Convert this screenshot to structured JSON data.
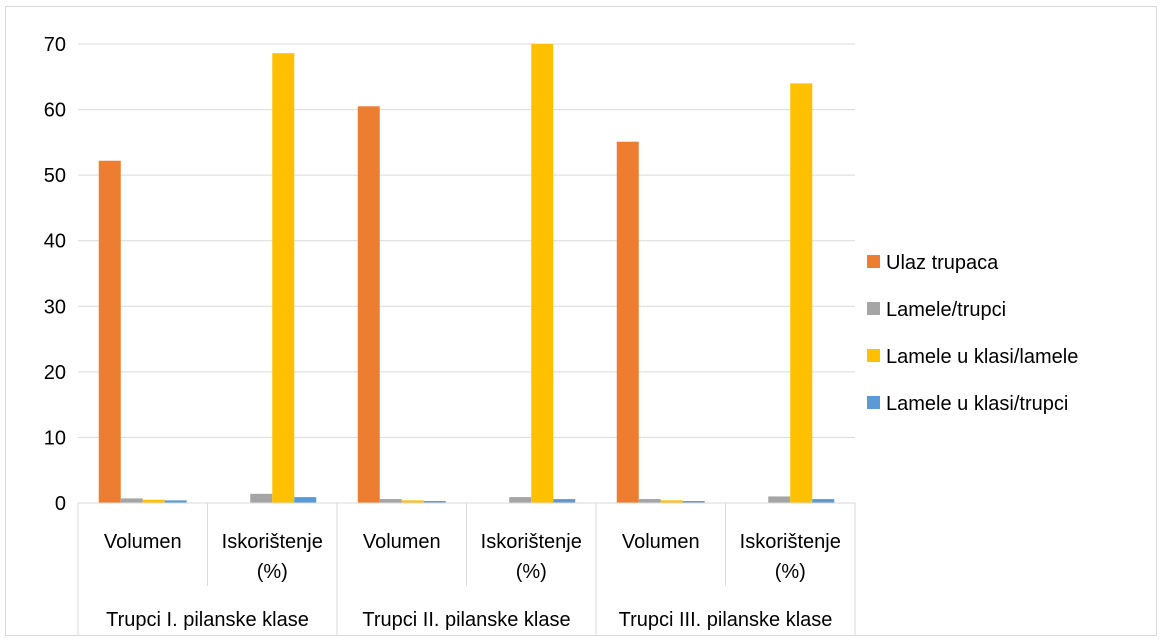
{
  "chart_data": {
    "type": "bar",
    "title": "",
    "xlabel": "",
    "ylabel": "",
    "ylim": [
      0,
      70
    ],
    "yticks": [
      "0",
      "10",
      "20",
      "30",
      "40",
      "50",
      "60",
      "70"
    ],
    "grid": true,
    "legend_position": "right",
    "groups": [
      {
        "label": "Trupci I. pilanske klase",
        "categories": [
          "Volumen",
          [
            "Iskorištenje",
            "(%)"
          ]
        ]
      },
      {
        "label": "Trupci II. pilanske klase",
        "categories": [
          "Volumen",
          [
            "Iskorištenje",
            "(%)"
          ]
        ]
      },
      {
        "label": "Trupci III. pilanske klase",
        "categories": [
          "Volumen",
          [
            "Iskorištenje",
            "(%)"
          ]
        ]
      }
    ],
    "series": [
      {
        "name": "Ulaz trupaca",
        "color": "#ED7D31",
        "values": [
          52.2,
          null,
          60.5,
          null,
          55.1,
          null
        ]
      },
      {
        "name": "Lamele/trupci",
        "color": "#A5A5A5",
        "values": [
          0.7,
          1.4,
          0.6,
          0.9,
          0.6,
          1.0
        ]
      },
      {
        "name": "Lamele u klasi/lamele",
        "color": "#FFC000",
        "values": [
          0.5,
          68.6,
          0.4,
          70.0,
          0.4,
          64.0
        ]
      },
      {
        "name": "Lamele u klasi/trupci",
        "color": "#5B9BD5",
        "values": [
          0.4,
          0.9,
          0.3,
          0.6,
          0.3,
          0.6
        ]
      }
    ]
  }
}
